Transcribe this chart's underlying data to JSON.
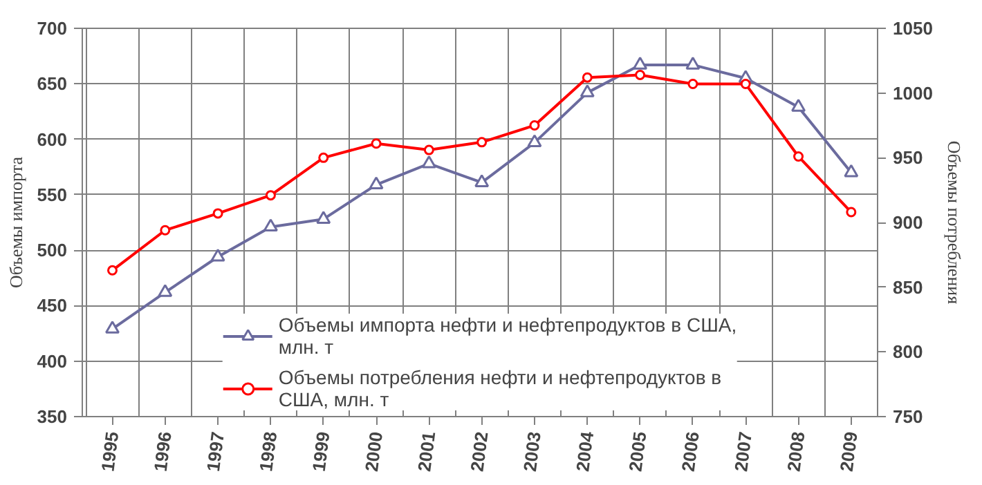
{
  "chart_data": {
    "type": "line",
    "categories": [
      "1995",
      "1996",
      "1997",
      "1998",
      "1999",
      "2000",
      "2001",
      "2002",
      "2003",
      "2004",
      "2005",
      "2006",
      "2007",
      "2008",
      "2009"
    ],
    "ylabel": "Объемы импорта",
    "y2label": "Объемы потребления",
    "ylim": [
      350,
      700
    ],
    "yticks": [
      350,
      400,
      450,
      500,
      550,
      600,
      650,
      700
    ],
    "y2lim": [
      750,
      1050
    ],
    "y2ticks": [
      750,
      800,
      850,
      900,
      950,
      1000,
      1050
    ],
    "grid": true,
    "legend": "bottom",
    "series": [
      {
        "name": "Объемы импорта нефти и нефтепродуктов в США, млн. т",
        "color": "#6b6b9e",
        "marker": "triangle",
        "values": [
          429,
          462,
          494,
          521,
          528,
          559,
          578,
          561,
          597,
          642,
          667,
          667,
          655,
          629,
          570
        ]
      },
      {
        "name": "Объемы потребления нефти и нефтепродуктов в США, млн. т",
        "color": "#ff0000",
        "marker": "circle",
        "axis": "y2",
        "values": [
          863,
          894,
          907,
          921,
          950,
          961,
          956,
          962,
          975,
          1012,
          1014,
          1007,
          1007,
          951,
          908
        ]
      }
    ]
  }
}
